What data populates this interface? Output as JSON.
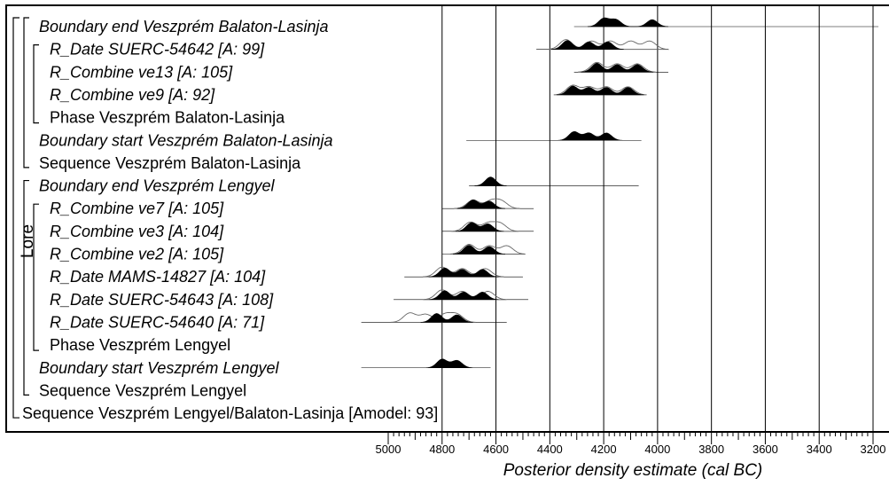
{
  "chart_data": {
    "type": "oxcal-multiplot",
    "xlabel": "Posterior density estimate (cal BC)",
    "xlim": [
      5100,
      3180
    ],
    "x_ticks": [
      5000,
      4800,
      4600,
      4400,
      4200,
      4000,
      3800,
      3600,
      3400,
      3200
    ],
    "gridlines": [
      4800,
      4600,
      4400,
      4200,
      4000,
      3800,
      3600,
      3400,
      3200
    ],
    "model_label": "Lore",
    "rows": [
      {
        "label": "Boundary end Veszprém Balaton-Lasinja",
        "italic": true,
        "indent": 1,
        "prior": [],
        "posterior": [
          4200,
          4155,
          4020
        ],
        "tail": [
          4310,
          3180
        ]
      },
      {
        "label": "R_Date SUERC-54642 [A: 99]",
        "italic": true,
        "indent": 2,
        "prior": [
          4340,
          4245,
          4175,
          4100,
          4030
        ],
        "posterior": [
          4335,
          4255,
          4185
        ],
        "tail": [
          4450,
          3980
        ]
      },
      {
        "label": "R_Combine ve13 [A: 105]",
        "italic": true,
        "indent": 2,
        "prior": [
          4225,
          4150,
          4075
        ],
        "posterior": [
          4225,
          4150,
          4075
        ],
        "tail": [
          4310,
          3960
        ]
      },
      {
        "label": "R_Combine ve9 [A: 92]",
        "italic": true,
        "indent": 2,
        "prior": [
          4315,
          4255,
          4190,
          4110
        ],
        "posterior": [
          4315,
          4255,
          4190,
          4110
        ],
        "tail": [
          4350,
          4060
        ]
      },
      {
        "label": "Phase Veszprém Balaton-Lasinja",
        "italic": false,
        "indent": 2,
        "prior": [],
        "posterior": [],
        "tail": []
      },
      {
        "label": "Boundary start Veszprém Balaton-Lasinja",
        "italic": true,
        "indent": 1,
        "prior": [],
        "posterior": [
          4310,
          4255,
          4190
        ],
        "tail": [
          4710,
          4060
        ]
      },
      {
        "label": "Sequence Veszprém Balaton-Lasinja",
        "italic": false,
        "indent": 1,
        "prior": [],
        "posterior": [],
        "tail": []
      },
      {
        "label": "Boundary end Veszprém Lengyel",
        "italic": true,
        "indent": 1,
        "prior": [],
        "posterior": [
          4620
        ],
        "tail": [
          4700,
          4070
        ]
      },
      {
        "label": "R_Combine ve7 [A: 105]",
        "italic": true,
        "indent": 2,
        "prior": [
          4685,
          4620,
          4580
        ],
        "posterior": [
          4685,
          4625
        ],
        "tail": [
          4800,
          4460
        ]
      },
      {
        "label": "R_Combine ve3 [A: 104]",
        "italic": true,
        "indent": 2,
        "prior": [
          4695,
          4630,
          4585
        ],
        "posterior": [
          4690,
          4630
        ],
        "tail": [
          4800,
          4460
        ]
      },
      {
        "label": "R_Combine ve2 [A: 105]",
        "italic": true,
        "indent": 2,
        "prior": [
          4700,
          4625,
          4560
        ],
        "posterior": [
          4700,
          4625
        ],
        "tail": [
          4800,
          4500
        ]
      },
      {
        "label": "R_Date MAMS-14827 [A: 104]",
        "italic": true,
        "indent": 2,
        "prior": [
          4800,
          4725,
          4640
        ],
        "posterior": [
          4790,
          4725,
          4650
        ],
        "tail": [
          4940,
          4500
        ]
      },
      {
        "label": "R_Date SUERC-54643 [A: 108]",
        "italic": true,
        "indent": 2,
        "prior": [
          4800,
          4725,
          4630
        ],
        "posterior": [
          4790,
          4720,
          4650
        ],
        "tail": [
          4980,
          4480
        ]
      },
      {
        "label": "R_Date SUERC-54640 [A: 71]",
        "italic": true,
        "indent": 2,
        "prior": [
          4920,
          4860,
          4790,
          4745
        ],
        "posterior": [
          4820,
          4745
        ],
        "tail": [
          5100,
          4560
        ]
      },
      {
        "label": "Phase Veszprém Lengyel",
        "italic": false,
        "indent": 2,
        "prior": [],
        "posterior": [],
        "tail": []
      },
      {
        "label": "Boundary start Veszprém Lengyel",
        "italic": true,
        "indent": 1,
        "prior": [],
        "posterior": [
          4800,
          4745
        ],
        "tail": [
          5100,
          4620
        ]
      },
      {
        "label": "Sequence Veszprém Lengyel",
        "italic": false,
        "indent": 1,
        "prior": [],
        "posterior": [],
        "tail": []
      },
      {
        "label": "Sequence Veszprém Lengyel/Balaton-Lasinja [Amodel: 93]",
        "italic": false,
        "indent": 0,
        "prior": [],
        "posterior": [],
        "tail": []
      }
    ]
  }
}
